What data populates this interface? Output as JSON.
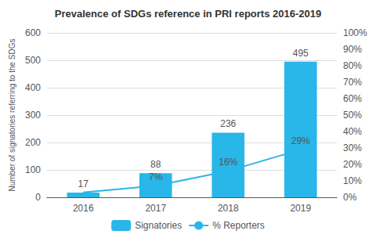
{
  "chart_data": {
    "type": "bar",
    "title": "Prevalence of SDGs reference in PRI reports 2016-2019",
    "categories": [
      "2016",
      "2017",
      "2018",
      "2019"
    ],
    "ylabel": "Number of signatories referring to the SDGs",
    "ylim": [
      0,
      600
    ],
    "yticks": [
      0,
      100,
      200,
      300,
      400,
      500,
      600
    ],
    "y2lim": [
      0,
      100
    ],
    "y2ticks": [
      {
        "value": 0,
        "label": "0%"
      },
      {
        "value": 10,
        "label": "10%"
      },
      {
        "value": 20,
        "label": "20%"
      },
      {
        "value": 30,
        "label": "30%"
      },
      {
        "value": 40,
        "label": "40%"
      },
      {
        "value": 50,
        "label": "50%"
      },
      {
        "value": 60,
        "label": "60%"
      },
      {
        "value": 70,
        "label": "70%"
      },
      {
        "value": 80,
        "label": "80%"
      },
      {
        "value": 90,
        "label": "90%"
      },
      {
        "value": 100,
        "label": "100%"
      }
    ],
    "grid": true,
    "legend": "bottom",
    "series": [
      {
        "name": "Signatories",
        "type": "bar",
        "color": "#29B6E8",
        "values": [
          17,
          88,
          236,
          495
        ],
        "data_labels": true
      },
      {
        "name": "% Reporters",
        "type": "line",
        "axis": "y2",
        "color": "#29B6E8",
        "values": [
          3,
          7,
          16,
          29
        ],
        "value_labels": [
          null,
          "7%",
          "16%",
          "29%"
        ],
        "data_labels": true
      }
    ]
  }
}
